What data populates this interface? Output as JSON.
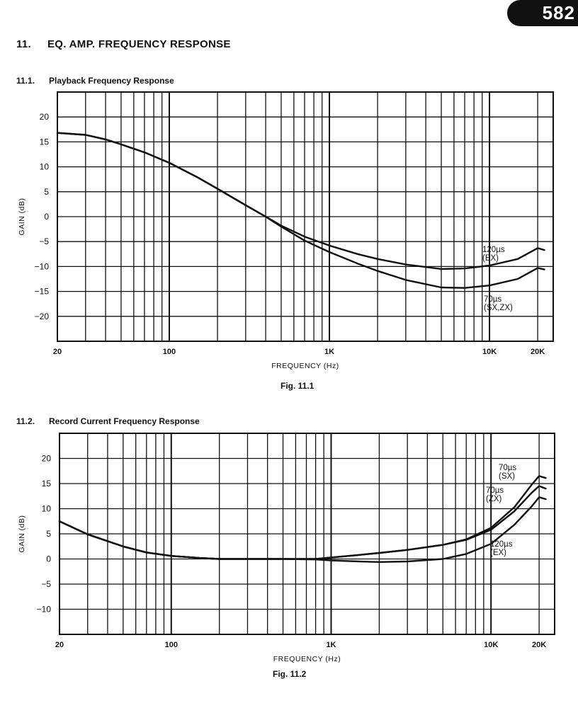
{
  "page_number": "582",
  "section": {
    "number": "11.",
    "title": "EQ. AMP. FREQUENCY RESPONSE"
  },
  "chart_data": [
    {
      "type": "line",
      "section_number": "11.1.",
      "title": "Playback Frequency Response",
      "caption": "Fig. 11.1",
      "xlabel": "FREQUENCY (Hz)",
      "ylabel": "GAIN (dB)",
      "x_scale": "log",
      "xlim": [
        20,
        25000
      ],
      "ylim": [
        -25,
        25
      ],
      "x_ticks": [
        {
          "value": 20,
          "label": "20"
        },
        {
          "value": 100,
          "label": "100"
        },
        {
          "value": 1000,
          "label": "1K"
        },
        {
          "value": 10000,
          "label": "10K"
        },
        {
          "value": 20000,
          "label": "20K"
        }
      ],
      "y_ticks": [
        {
          "value": 20,
          "label": "20"
        },
        {
          "value": 15,
          "label": "15"
        },
        {
          "value": 10,
          "label": "10"
        },
        {
          "value": 5,
          "label": "5"
        },
        {
          "value": 0,
          "label": "0"
        },
        {
          "value": -5,
          "label": "−5"
        },
        {
          "value": -10,
          "label": "−10"
        },
        {
          "value": -15,
          "label": "−15"
        },
        {
          "value": -20,
          "label": "−20"
        }
      ],
      "grid": true,
      "series": [
        {
          "name": "120µs (EX)",
          "label_lines": [
            "120µs",
            "(EX)"
          ],
          "x": [
            20,
            30,
            40,
            50,
            70,
            100,
            150,
            200,
            300,
            400,
            500,
            700,
            1000,
            1500,
            2000,
            3000,
            5000,
            7000,
            10000,
            15000,
            20000,
            22000
          ],
          "y": [
            16.8,
            16.4,
            15.5,
            14.5,
            12.9,
            10.8,
            7.9,
            5.6,
            2.3,
            0,
            -1.8,
            -4,
            -5.8,
            -7.5,
            -8.5,
            -9.6,
            -10.5,
            -10.4,
            -9.8,
            -8.5,
            -6.3,
            -6.7
          ]
        },
        {
          "name": "70µs (SX,ZX)",
          "label_lines": [
            "70µs",
            "(SX,ZX)"
          ],
          "x": [
            20,
            30,
            40,
            50,
            70,
            100,
            150,
            200,
            300,
            400,
            500,
            700,
            1000,
            1500,
            2000,
            3000,
            5000,
            7000,
            10000,
            15000,
            20000,
            22000
          ],
          "y": [
            16.8,
            16.4,
            15.5,
            14.5,
            12.9,
            10.8,
            7.9,
            5.6,
            2.3,
            0,
            -2,
            -4.8,
            -7.1,
            -9.4,
            -10.9,
            -12.7,
            -14.2,
            -14.3,
            -13.8,
            -12.5,
            -10.3,
            -10.6
          ]
        }
      ]
    },
    {
      "type": "line",
      "section_number": "11.2.",
      "title": "Record Current Frequency Response",
      "caption": "Fig. 11.2",
      "xlabel": "FREQUENCY (Hz)",
      "ylabel": "GAIN (dB)",
      "x_scale": "log",
      "xlim": [
        20,
        25000
      ],
      "ylim": [
        -15,
        25
      ],
      "x_ticks": [
        {
          "value": 20,
          "label": "20"
        },
        {
          "value": 100,
          "label": "100"
        },
        {
          "value": 1000,
          "label": "1K"
        },
        {
          "value": 10000,
          "label": "10K"
        },
        {
          "value": 20000,
          "label": "20K"
        }
      ],
      "y_ticks": [
        {
          "value": 20,
          "label": "20"
        },
        {
          "value": 15,
          "label": "15"
        },
        {
          "value": 10,
          "label": "10"
        },
        {
          "value": 5,
          "label": "5"
        },
        {
          "value": 0,
          "label": "0"
        },
        {
          "value": -5,
          "label": "−5"
        },
        {
          "value": -10,
          "label": "−10"
        }
      ],
      "grid": true,
      "series": [
        {
          "name": "70µs (SX)",
          "label_lines": [
            "70µs",
            "(SX)"
          ],
          "x": [
            20,
            30,
            50,
            70,
            100,
            150,
            200,
            300,
            500,
            800,
            1000,
            1500,
            2000,
            3000,
            5000,
            7000,
            10000,
            14000,
            18000,
            20000,
            22000
          ],
          "y": [
            7.5,
            4.9,
            2.5,
            1.3,
            0.6,
            0.2,
            0,
            0,
            0,
            0,
            0.3,
            0.8,
            1.2,
            1.8,
            2.8,
            3.9,
            6.2,
            10.3,
            14.8,
            16.5,
            16.1
          ]
        },
        {
          "name": "70µs (ZX)",
          "label_lines": [
            "70µs",
            "(ZX)"
          ],
          "x": [
            20,
            30,
            50,
            70,
            100,
            150,
            200,
            300,
            500,
            800,
            1000,
            1500,
            2000,
            3000,
            5000,
            7000,
            10000,
            14000,
            18000,
            20000,
            22000
          ],
          "y": [
            7.5,
            4.9,
            2.5,
            1.3,
            0.6,
            0.2,
            0,
            0,
            0,
            0,
            0.3,
            0.8,
            1.2,
            1.8,
            2.8,
            3.8,
            5.8,
            9.5,
            13.2,
            14.5,
            14.0
          ]
        },
        {
          "name": "120µs (EX)",
          "label_lines": [
            "120µs",
            "(EX)"
          ],
          "x": [
            20,
            30,
            50,
            70,
            100,
            150,
            200,
            300,
            500,
            800,
            1000,
            1500,
            2000,
            3000,
            5000,
            7000,
            10000,
            14000,
            18000,
            20000,
            22000
          ],
          "y": [
            7.5,
            4.9,
            2.5,
            1.3,
            0.6,
            0.2,
            0,
            0,
            0,
            -0.1,
            -0.3,
            -0.5,
            -0.6,
            -0.5,
            0,
            1.0,
            3.0,
            6.8,
            10.5,
            12.3,
            11.9
          ]
        }
      ]
    }
  ]
}
